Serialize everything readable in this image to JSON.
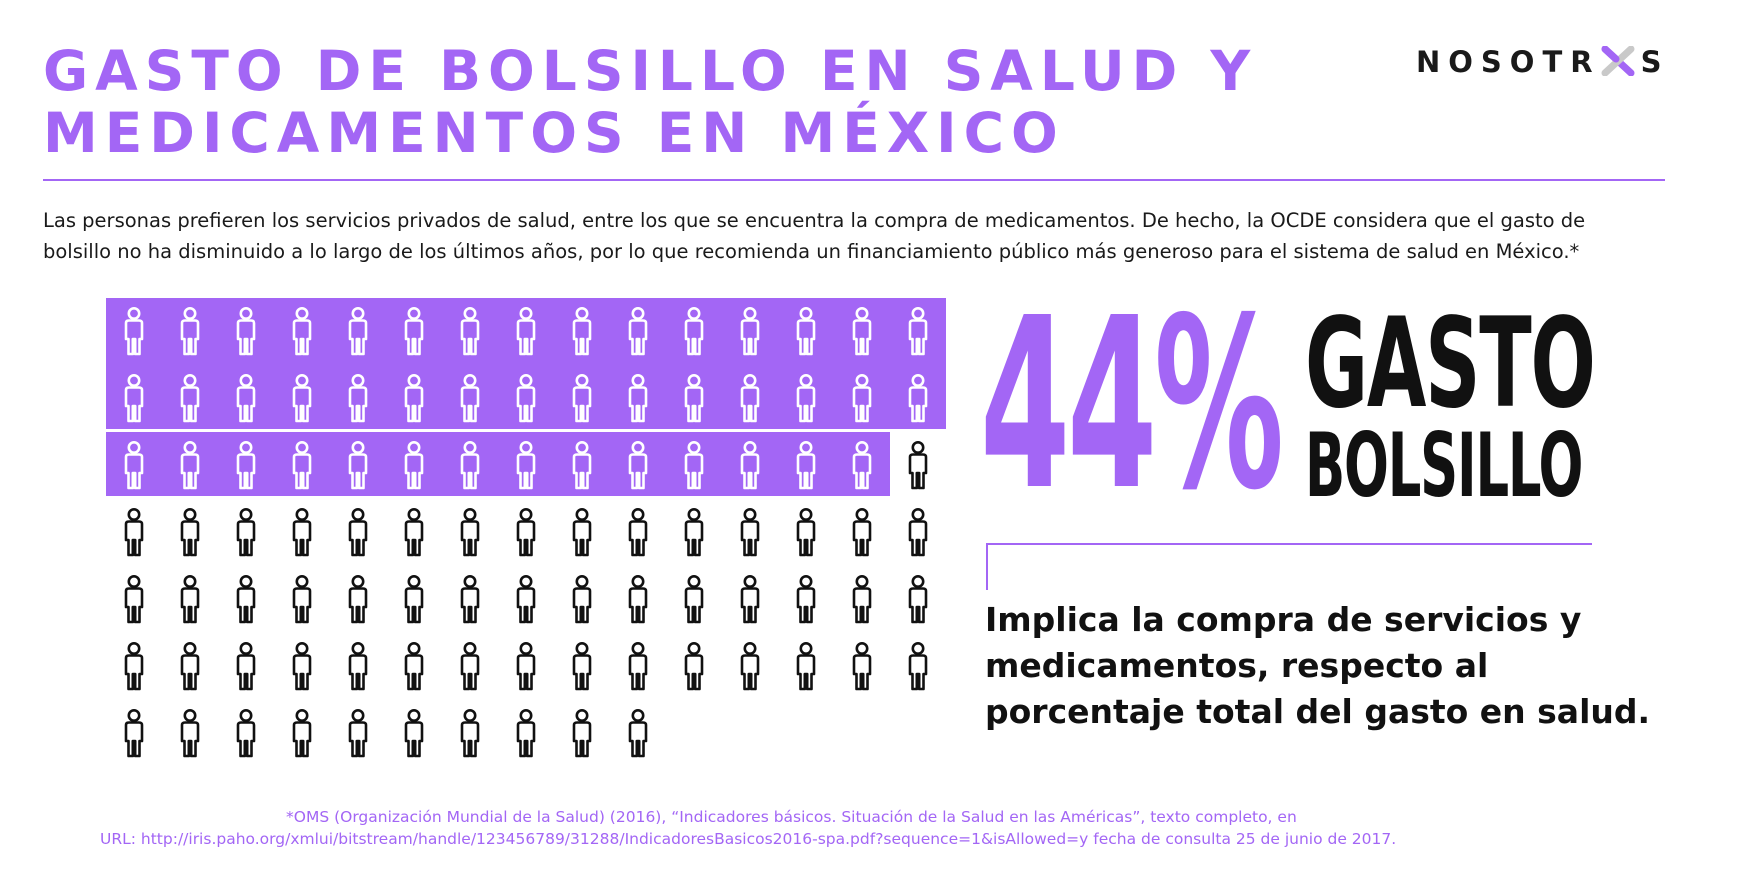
{
  "title": {
    "line1": "GASTO DE BOLSILLO EN SALUD Y",
    "line2": "MEDICAMENTOS EN MÉXICO"
  },
  "logo": {
    "text_left": "NOSOTR",
    "text_right": "S",
    "mark_icon": "x-logo-mark"
  },
  "intro": {
    "line1": "Las personas prefieren los servicios privados de salud, entre los que se encuentra la compra de medicamentos. De hecho, la OCDE considera que el gasto de",
    "line2": "bolsillo no ha disminuido a lo largo de los últimos años, por lo que recomienda un financiamiento público más generoso para el sistema de salud en México.*"
  },
  "pictogram": {
    "total_people": 100,
    "highlighted_people": 44,
    "columns": 15,
    "icon": "person-icon"
  },
  "stat": {
    "value": "44%",
    "label_line1": "GASTO",
    "label_line2": "BOLSILLO"
  },
  "description": {
    "line1": "Implica la compra de servicios y",
    "line2": "medicamentos, respecto al",
    "line3": "porcentaje total del gasto en salud."
  },
  "footnote": {
    "line1": "*OMS (Organización Mundial de la Salud) (2016), “Indicadores básicos. Situación de la Salud en las Américas”, texto completo, en",
    "line2": "URL: http://iris.paho.org/xmlui/bitstream/handle/123456789/31288/IndicadoresBasicos2016-spa.pdf?sequence=1&isAllowed=y fecha de consulta 25 de junio de 2017."
  },
  "colors": {
    "accent": "#a366f5",
    "text": "#111111",
    "background": "#ffffff"
  }
}
